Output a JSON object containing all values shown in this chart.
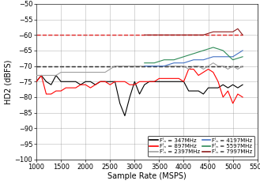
{
  "xlabel": "Sample Rate (MSPS)",
  "ylabel": "HD2 (dBFS)",
  "xlim": [
    1000,
    5500
  ],
  "ylim": [
    -100,
    -50
  ],
  "yticks": [
    -100,
    -95,
    -90,
    -85,
    -80,
    -75,
    -70,
    -65,
    -60,
    -55,
    -50
  ],
  "xticks": [
    1000,
    1500,
    2000,
    2500,
    3000,
    3500,
    4000,
    4500,
    5000,
    5500
  ],
  "background_color": "#ffffff",
  "grid_color": "#888888",
  "legend_fontsize": 5.0,
  "axis_fontsize": 7,
  "tick_fontsize": 6,
  "series": [
    {
      "label": "Fᴵₙ = 347MHz",
      "color": "#000000",
      "lw": 0.8,
      "x": [
        1000,
        1100,
        1200,
        1300,
        1400,
        1500,
        1600,
        1700,
        1800,
        1900,
        2000,
        2100,
        2200,
        2300,
        2400,
        2500,
        2600,
        2700,
        2800,
        2900,
        3000,
        3100,
        3200,
        3300,
        3400,
        3500,
        3600,
        3700,
        3800,
        3900,
        4000,
        4100,
        4200,
        4300,
        4400,
        4500,
        4600,
        4700,
        4800,
        4900,
        5000,
        5100,
        5200
      ],
      "y": [
        -75,
        -73,
        -75,
        -76,
        -73,
        -75,
        -75,
        -75,
        -75,
        -76,
        -75,
        -75,
        -76,
        -75,
        -75,
        -75,
        -75,
        -82,
        -86,
        -80,
        -75,
        -79,
        -76,
        -75,
        -75,
        -75,
        -75,
        -75,
        -75,
        -75,
        -75,
        -78,
        -78,
        -78,
        -79,
        -77,
        -77,
        -77,
        -76,
        -77,
        -76,
        -77,
        -76
      ]
    },
    {
      "label": "Fᴵₙ = 897MHz",
      "color": "#ff0000",
      "lw": 0.8,
      "x": [
        1000,
        1100,
        1200,
        1300,
        1400,
        1500,
        1600,
        1700,
        1800,
        1900,
        2000,
        2100,
        2200,
        2300,
        2400,
        2500,
        2600,
        2700,
        2800,
        2900,
        3000,
        3100,
        3200,
        3300,
        3400,
        3500,
        3600,
        3700,
        3800,
        3900,
        4000,
        4100,
        4200,
        4300,
        4400,
        4500,
        4600,
        4700,
        4800,
        4900,
        5000,
        5100,
        5200
      ],
      "y": [
        -75,
        -73,
        -79,
        -79,
        -78,
        -78,
        -77,
        -77,
        -77,
        -76,
        -76,
        -77,
        -76,
        -75,
        -75,
        -76,
        -75,
        -75,
        -75,
        -76,
        -76,
        -75,
        -75,
        -75,
        -75,
        -74,
        -74,
        -74,
        -74,
        -74,
        -75,
        -71,
        -71,
        -73,
        -72,
        -71,
        -72,
        -75,
        -80,
        -78,
        -82,
        -79,
        -80
      ]
    },
    {
      "label": "Fᴵₙ = 2397MHz",
      "color": "#a0a0a0",
      "lw": 0.8,
      "x": [
        1000,
        1100,
        1200,
        1300,
        1400,
        1500,
        1600,
        1700,
        1800,
        1900,
        2000,
        2100,
        2200,
        2300,
        2400,
        2500,
        2600,
        2700,
        2800,
        2900,
        3000,
        3100,
        3200,
        3300,
        3400,
        3500,
        3600,
        3700,
        3800,
        3900,
        4000,
        4100,
        4200,
        4300,
        4400,
        4500,
        4600,
        4700,
        4800,
        4900,
        5000,
        5100,
        5200
      ],
      "y": [
        -73,
        -73,
        -73,
        -73,
        -73,
        -72,
        -72,
        -72,
        -72,
        -72,
        -72,
        -72,
        -72,
        -72,
        -72,
        -71,
        -70,
        -70,
        -70,
        -70,
        -70,
        -70,
        -70,
        -70,
        -70,
        -70,
        -70,
        -70,
        -70,
        -70,
        -70,
        -71,
        -70,
        -70,
        -71,
        -70,
        -69,
        -70,
        -70,
        -71,
        -70,
        -71,
        -70
      ]
    },
    {
      "label": "Fᴵₙ = 4197MHz",
      "color": "#4472c4",
      "lw": 0.8,
      "x": [
        3200,
        3400,
        3600,
        3800,
        4000,
        4200,
        4400,
        4600,
        4800,
        5000,
        5200
      ],
      "y": [
        -70,
        -70,
        -70,
        -69,
        -69,
        -68,
        -68,
        -67,
        -67,
        -67,
        -65
      ]
    },
    {
      "label": "Fᴵₙ = 5597MHz",
      "color": "#2e8b57",
      "lw": 0.8,
      "x": [
        3200,
        3400,
        3600,
        3800,
        4000,
        4200,
        4400,
        4600,
        4800,
        5000,
        5200
      ],
      "y": [
        -69,
        -69,
        -68,
        -68,
        -67,
        -66,
        -65,
        -64,
        -65,
        -68,
        -67
      ]
    },
    {
      "label": "Fᴵₙ = 7997MHz",
      "color": "#8b1a1a",
      "lw": 0.8,
      "x": [
        3200,
        3400,
        3600,
        3800,
        4000,
        4200,
        4400,
        4600,
        4800,
        5000,
        5100,
        5200
      ],
      "y": [
        -60,
        -60,
        -60,
        -60,
        -60,
        -60,
        -60,
        -59,
        -59,
        -59,
        -58,
        -60
      ]
    }
  ],
  "flat_lines": [
    {
      "color": "#000000",
      "y": -70,
      "x0": 1000,
      "x1": 5200,
      "lw": 1.0,
      "ls": "--"
    },
    {
      "color": "#ff0000",
      "y": -60,
      "x0": 1000,
      "x1": 5200,
      "lw": 1.0,
      "ls": "--"
    }
  ]
}
